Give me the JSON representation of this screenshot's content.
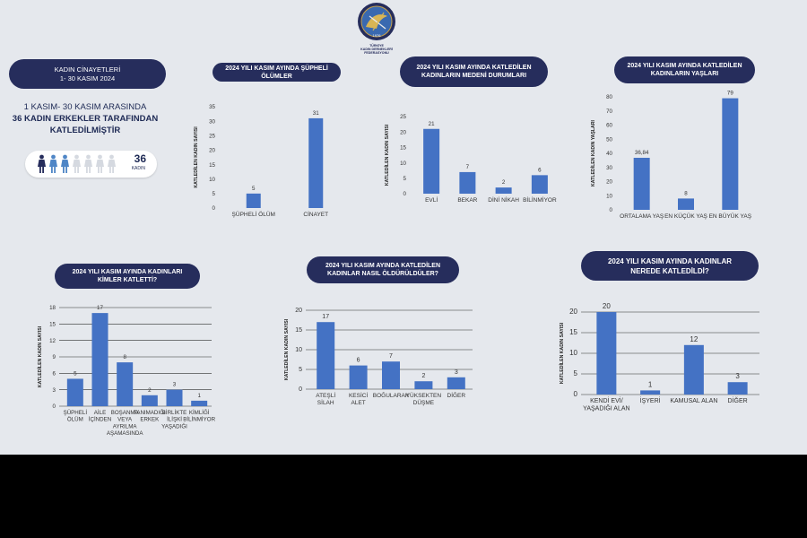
{
  "logo": {
    "name": "TÜRKİYE KADIN DERNEKLERİ FEDERASYONU",
    "line1": "TÜRKİYE",
    "line2": "KADIN DERNEKLERİ FEDERASYONU",
    "year": "1976",
    "icon": "federation-emblem-icon"
  },
  "intro": {
    "title_line1": "KADIN CİNAYETLERİ",
    "title_line2": "1- 30 KASIM 2024",
    "summary_line1": "1 KASIM- 30 KASIM ARASINDA",
    "summary_line2": "36 KADIN ERKEKLER TARAFINDAN",
    "summary_line3": "KATLEDİLMİŞTİR",
    "count": "36",
    "count_unit": "KADIN",
    "icon": "woman-figure-icon"
  },
  "colors": {
    "bar": "#4472c4",
    "heading": "#262d5c",
    "axis_text": "#333333",
    "grid": "#2e2e2e",
    "figure_dark": "#262d5c",
    "figure_blue": "#4f86c6",
    "figure_light": "#d5d9e0"
  },
  "chart_data": [
    {
      "id": "suspicious",
      "type": "bar",
      "title": [
        "2024 YILI KASIM AYINDA ŞÜPHELİ ÖLÜMLER"
      ],
      "ylabel": "KATLEDİLEN KADIN SAYISI",
      "categories": [
        [
          "ŞÜPHELİ ÖLÜM"
        ],
        [
          "CİNAYET"
        ]
      ],
      "values": [
        5,
        31
      ],
      "value_labels": [
        "5",
        "31"
      ],
      "ylim": [
        0,
        35
      ],
      "yticks": [
        0,
        5,
        10,
        15,
        20,
        25,
        30,
        35
      ],
      "grid": false
    },
    {
      "id": "marital",
      "type": "bar",
      "title": [
        "2024 YILI KASIM AYINDA KATLEDİLEN",
        "KADINLARIN MEDENİ DURUMLARI"
      ],
      "ylabel": "KATLEDİLEN KADIN SAYISI",
      "categories": [
        [
          "EVLİ"
        ],
        [
          "BEKAR"
        ],
        [
          "DİNİ NİKAH"
        ],
        [
          "BİLİNMİYOR"
        ]
      ],
      "values": [
        21,
        7,
        2,
        6
      ],
      "value_labels": [
        "21",
        "7",
        "2",
        "6"
      ],
      "ylim": [
        0,
        25
      ],
      "yticks": [
        0,
        5,
        10,
        15,
        20,
        25
      ],
      "grid": false
    },
    {
      "id": "ages",
      "type": "bar",
      "title": [
        "2024 YILI KASIM AYINDA KATLEDİLEN",
        "KADINLARIN YAŞLARI"
      ],
      "ylabel": "KATLEDİLEN KADIN YAŞLARI",
      "categories": [
        [
          "ORTALAMA YAŞ"
        ],
        [
          "EN KÜÇÜK YAŞ"
        ],
        [
          "EN BÜYÜK YAŞ"
        ]
      ],
      "values": [
        36.84,
        8,
        79
      ],
      "value_labels": [
        "36,84",
        "8",
        "79"
      ],
      "ylim": [
        0,
        80
      ],
      "yticks": [
        0,
        10,
        20,
        30,
        40,
        50,
        60,
        70,
        80
      ],
      "grid": false
    },
    {
      "id": "perpetrators",
      "type": "bar",
      "title": [
        "2024 YILI KASIM AYINDA KADINLARI",
        "KİMLER KATLETTİ?"
      ],
      "ylabel": "KATLEDİLEN KADIN SAYISI",
      "categories": [
        [
          "ŞÜPHELİ",
          "ÖLÜM"
        ],
        [
          "AİLE",
          "İÇİNDEN"
        ],
        [
          "BOŞANMA",
          "VEYA",
          "AYRILMA",
          "AŞAMASINDA"
        ],
        [
          "TANIMADIĞI",
          "ERKEK"
        ],
        [
          "BİRLİKTE",
          "İLİŞKİ",
          "YAŞADIĞI"
        ],
        [
          "KİMLİĞİ",
          "BİLİNMİYOR"
        ]
      ],
      "values": [
        5,
        17,
        8,
        2,
        3,
        1
      ],
      "value_labels": [
        "5",
        "17",
        "8",
        "2",
        "3",
        "1"
      ],
      "ylim": [
        0,
        18
      ],
      "yticks": [
        0,
        3,
        6,
        9,
        12,
        15,
        18
      ],
      "grid": true
    },
    {
      "id": "method",
      "type": "bar",
      "title": [
        "2024 YILI KASIM AYINDA KATLEDİLEN",
        "KADINLAR NASIL ÖLDÜRÜLDÜLER?"
      ],
      "ylabel": "KATLEDİLEN KADIN SAYISI",
      "categories": [
        [
          "ATEŞLİ",
          "SİLAH"
        ],
        [
          "KESİCİ",
          "ALET"
        ],
        [
          "BOĞULARAK"
        ],
        [
          "YÜKSEKTEN",
          "DÜŞME"
        ],
        [
          "DİĞER"
        ]
      ],
      "values": [
        17,
        6,
        7,
        2,
        3
      ],
      "value_labels": [
        "17",
        "6",
        "7",
        "2",
        "3"
      ],
      "ylim": [
        0,
        20
      ],
      "yticks": [
        0,
        5,
        10,
        15,
        20
      ],
      "grid": true
    },
    {
      "id": "place",
      "type": "bar",
      "title": [
        "2024 YILI KASIM AYINDA KADINLAR",
        "NEREDE KATLEDİLDİ?"
      ],
      "ylabel": "KATLEDİLEN KADIN SAYISI",
      "categories": [
        [
          "KENDİ EVİ/",
          "YAŞADIĞI ALAN"
        ],
        [
          "İŞYERİ"
        ],
        [
          "KAMUSAL ALAN"
        ],
        [
          "DİĞER"
        ]
      ],
      "values": [
        20,
        1,
        12,
        3
      ],
      "value_labels": [
        "20",
        "1",
        "12",
        "3"
      ],
      "ylim": [
        0,
        20
      ],
      "yticks": [
        0,
        5,
        10,
        15,
        20
      ],
      "grid": true
    }
  ]
}
